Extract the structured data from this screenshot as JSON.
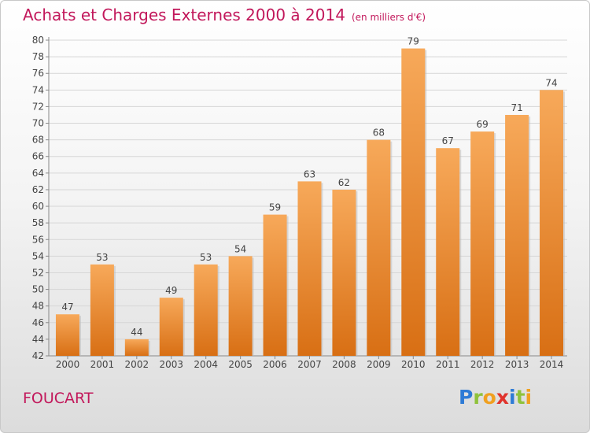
{
  "title": "Achats et Charges Externes 2000 à 2014",
  "unit": "(en milliers d'€)",
  "place": "FOUCART",
  "logo": {
    "letters": [
      "P",
      "r",
      "o",
      "x",
      "i",
      "t",
      "i"
    ],
    "colors": [
      "#2e7bd6",
      "#8fc23b",
      "#f0a020",
      "#e0332c",
      "#2e7bd6",
      "#8fc23b",
      "#f0a020"
    ]
  },
  "colors": {
    "bar_top": "#f7a95a",
    "bar_bottom": "#d86f14",
    "accent": "#c2185b"
  },
  "chart_data": {
    "type": "bar",
    "categories": [
      "2000",
      "2001",
      "2002",
      "2003",
      "2004",
      "2005",
      "2006",
      "2007",
      "2008",
      "2009",
      "2010",
      "2011",
      "2012",
      "2013",
      "2014"
    ],
    "values": [
      47,
      53,
      44,
      49,
      53,
      54,
      59,
      63,
      62,
      68,
      79,
      67,
      69,
      71,
      74
    ],
    "ylim": [
      42,
      80
    ],
    "yticks": [
      42,
      44,
      46,
      48,
      50,
      52,
      54,
      56,
      58,
      60,
      62,
      64,
      66,
      68,
      70,
      72,
      74,
      76,
      78,
      80
    ],
    "grid": true,
    "title": "Achats et Charges Externes 2000 à 2014",
    "xlabel": "",
    "ylabel": ""
  }
}
